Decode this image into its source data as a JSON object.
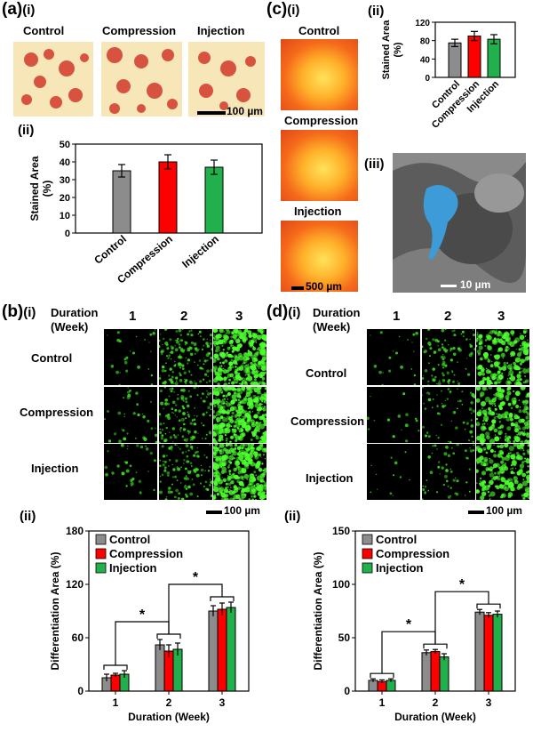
{
  "panels": {
    "a": {
      "label": "(a)",
      "sub_i": "(i)",
      "sub_ii": "(ii)",
      "image_labels": [
        "Control",
        "Compression",
        "Injection"
      ],
      "scale": "100 µm"
    },
    "b": {
      "label": "(b)",
      "sub_i": "(i)",
      "sub_ii": "(ii)",
      "duration_label": "Duration (Week)",
      "weeks": [
        "1",
        "2",
        "3"
      ],
      "rows": [
        "Control",
        "Compression",
        "Injection"
      ],
      "scale": "100 µm"
    },
    "c": {
      "label": "(c)",
      "sub_i": "(i)",
      "sub_ii": "(ii)",
      "sub_iii": "(iii)",
      "image_labels": [
        "Control",
        "Compression",
        "Injection"
      ],
      "scale": "500 µm",
      "sem_scale": "10 µm"
    },
    "d": {
      "label": "(d)",
      "sub_i": "(i)",
      "sub_ii": "(ii)",
      "duration_label": "Duration (Week)",
      "weeks": [
        "1",
        "2",
        "3"
      ],
      "rows": [
        "Control",
        "Compression",
        "Injection"
      ],
      "scale": "100 µm"
    }
  },
  "colors": {
    "control": "#8c8c8c",
    "compression": "#ff0000",
    "injection": "#21b04b"
  },
  "chart_data": [
    {
      "id": "a-ii",
      "type": "bar",
      "categories": [
        "Control",
        "Compression",
        "Injection"
      ],
      "values": [
        35,
        40,
        37
      ],
      "errors": [
        3.5,
        4,
        4
      ],
      "ylabel": "Stained Area (%)",
      "ylim": [
        0,
        50
      ],
      "yticks": [
        "0",
        "10",
        "20",
        "30",
        "40",
        "50"
      ]
    },
    {
      "id": "c-ii",
      "type": "bar",
      "categories": [
        "Control",
        "Compression",
        "Injection"
      ],
      "values": [
        75,
        90,
        83
      ],
      "errors": [
        8,
        10,
        10
      ],
      "ylabel": "Stained Area (%)",
      "ylim": [
        0,
        120
      ],
      "yticks": [
        "0",
        "40",
        "80",
        "120"
      ]
    },
    {
      "id": "b-ii",
      "type": "bar",
      "categories": [
        "1",
        "2",
        "3"
      ],
      "series": [
        {
          "name": "Control",
          "values": [
            15,
            52,
            90
          ],
          "errors": [
            4,
            6,
            6
          ]
        },
        {
          "name": "Compression",
          "values": [
            18,
            45,
            92
          ],
          "errors": [
            2,
            7,
            7
          ]
        },
        {
          "name": "Injection",
          "values": [
            19,
            47,
            94
          ],
          "errors": [
            4,
            7,
            6
          ]
        }
      ],
      "xlabel": "Duration (Week)",
      "ylabel": "Differentiation Area (%)",
      "ylim": [
        0,
        180
      ],
      "yticks": [
        "0",
        "60",
        "120",
        "180"
      ],
      "legend": "top-left",
      "significance": "*"
    },
    {
      "id": "d-ii",
      "type": "bar",
      "categories": [
        "1",
        "2",
        "3"
      ],
      "series": [
        {
          "name": "Control",
          "values": [
            10,
            36,
            74
          ],
          "errors": [
            1.5,
            2.5,
            2.5
          ]
        },
        {
          "name": "Compression",
          "values": [
            9,
            37,
            71
          ],
          "errors": [
            1.5,
            2,
            2.5
          ]
        },
        {
          "name": "Injection",
          "values": [
            10,
            32,
            72
          ],
          "errors": [
            1.5,
            3,
            3
          ]
        }
      ],
      "xlabel": "Duration (Week)",
      "ylabel": "Differentiation Area (%)",
      "ylim": [
        0,
        150
      ],
      "yticks": [
        "0",
        "50",
        "100",
        "150"
      ],
      "legend": "top-left",
      "significance": "*"
    }
  ]
}
